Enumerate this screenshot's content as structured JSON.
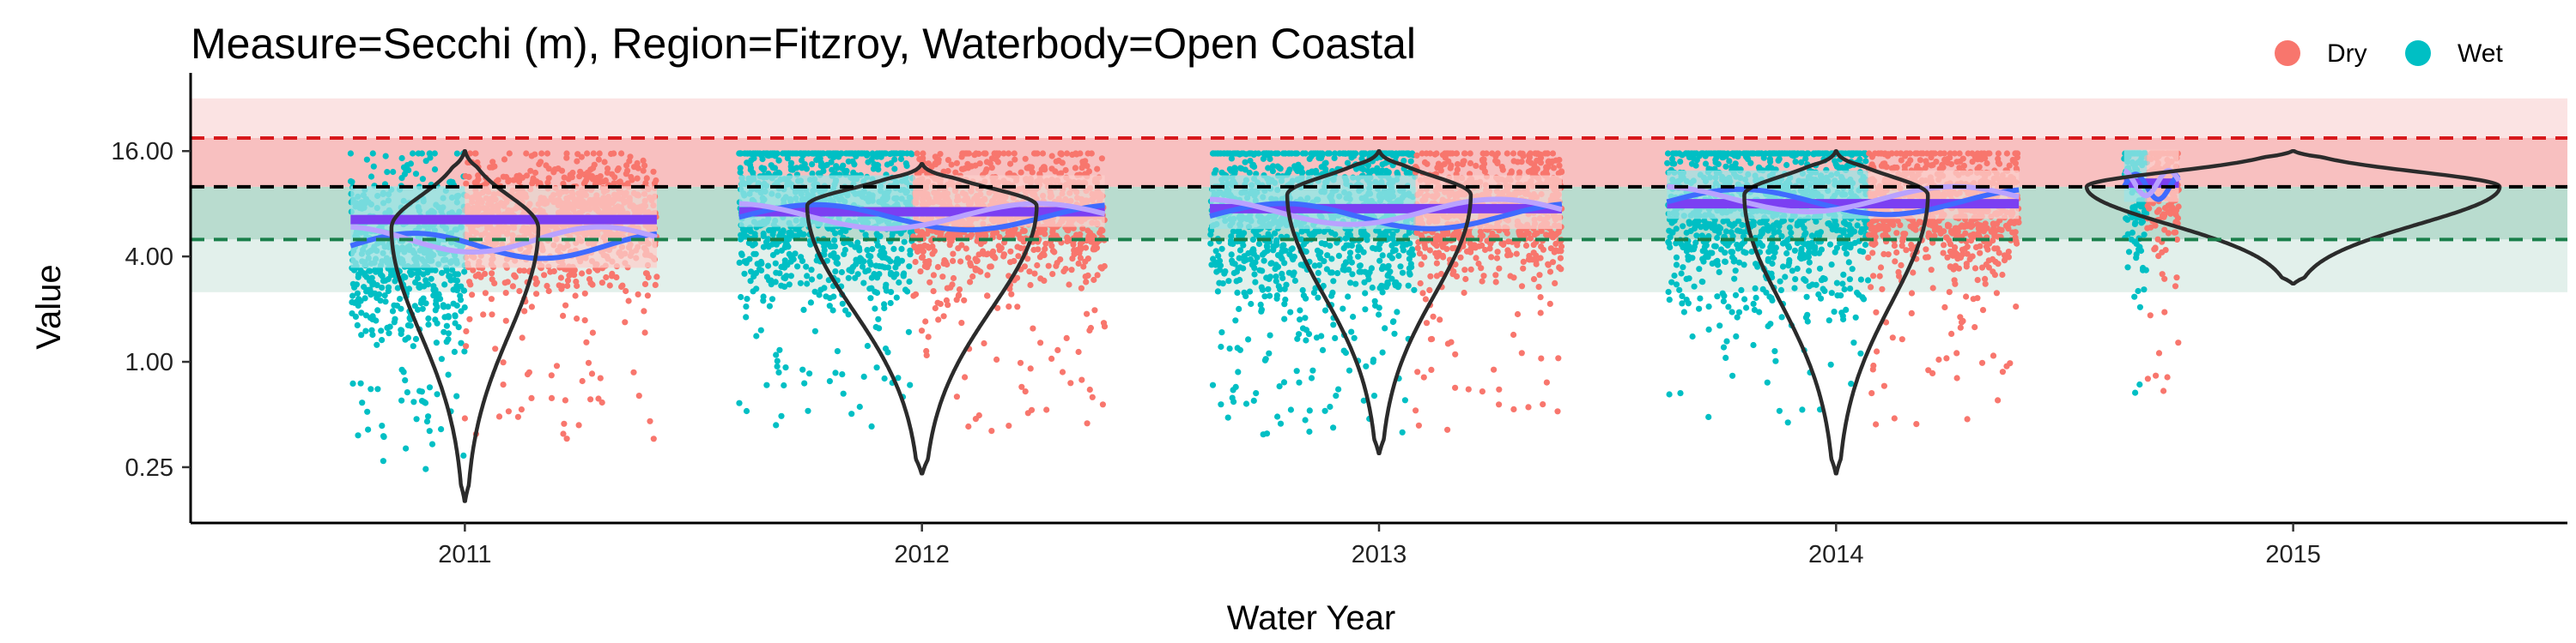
{
  "chart_data": {
    "type": "scatter",
    "title": "Measure=Secchi (m), Region=Fitzroy, Waterbody=Open Coastal",
    "xlabel": "Water Year",
    "ylabel": "Value",
    "y_scale": "log2",
    "ylim": [
      0.12,
      40
    ],
    "y_ticks": [
      0.25,
      1.0,
      4.0,
      16.0
    ],
    "y_tick_labels": [
      "0.25",
      "1.00",
      "4.00",
      "16.00"
    ],
    "x_ticks": [
      2011,
      2012,
      2013,
      2014,
      2015
    ],
    "xlim": [
      2010.4,
      2015.6
    ],
    "grid": false,
    "legend": {
      "placement": "top-right",
      "entries": [
        {
          "name": "Dry",
          "color": "#F8766D"
        },
        {
          "name": "Wet",
          "color": "#00BFC4"
        }
      ]
    },
    "reference_lines": [
      {
        "y": 19.0,
        "color": "#D7191C",
        "style": "dashed"
      },
      {
        "y": 10.0,
        "color": "#000000",
        "style": "dashed"
      },
      {
        "y": 5.0,
        "color": "#1A7F4B",
        "style": "dashed"
      }
    ],
    "bands": [
      {
        "from": 19.0,
        "to": 32.0,
        "color": "#FBE3E3"
      },
      {
        "from": 10.0,
        "to": 19.0,
        "color": "#F8C0C0"
      },
      {
        "from": 5.0,
        "to": 10.0,
        "color": "#B9DCCF"
      },
      {
        "from": 2.5,
        "to": 5.0,
        "color": "#E2F0EB"
      }
    ],
    "years": [
      {
        "year": 2011,
        "start": 2010.75,
        "wet_end": 2011.0,
        "end": 2011.42,
        "dry_median": 6.5,
        "wet_median": 4.2,
        "dry_mean": 5.0,
        "wet_mean": 4.6,
        "violin": {
          "min": 0.16,
          "max": 16.0,
          "mode": 5.8,
          "width": 0.16
        }
      },
      {
        "year": 2012,
        "start": 2011.6,
        "wet_end": 2011.98,
        "end": 2012.4,
        "dry_median": 7.2,
        "wet_median": 7.5,
        "dry_mean": 6.8,
        "wet_mean": 6.7,
        "violin": {
          "min": 0.23,
          "max": 13.5,
          "mode": 7.8,
          "width": 0.25
        }
      },
      {
        "year": 2013,
        "start": 2012.63,
        "wet_end": 2013.08,
        "end": 2013.4,
        "dry_median": 7.5,
        "wet_median": 7.0,
        "dry_mean": 7.2,
        "wet_mean": 6.8,
        "violin": {
          "min": 0.3,
          "max": 16.0,
          "mode": 9.0,
          "width": 0.2
        }
      },
      {
        "year": 2014,
        "start": 2013.63,
        "wet_end": 2014.07,
        "end": 2014.4,
        "dry_median": 8.0,
        "wet_median": 8.0,
        "dry_mean": 8.5,
        "wet_mean": 8.2,
        "violin": {
          "min": 0.23,
          "max": 16.0,
          "mode": 9.0,
          "width": 0.2
        }
      },
      {
        "year": 2015,
        "start": 2014.63,
        "wet_end": 2014.68,
        "end": 2014.75,
        "dry_median": 10.5,
        "wet_median": 10.0,
        "dry_mean": 10.5,
        "wet_mean": 10.0,
        "violin": {
          "min": 2.8,
          "max": 16.0,
          "mode": 10.0,
          "width": 0.45
        }
      }
    ]
  }
}
